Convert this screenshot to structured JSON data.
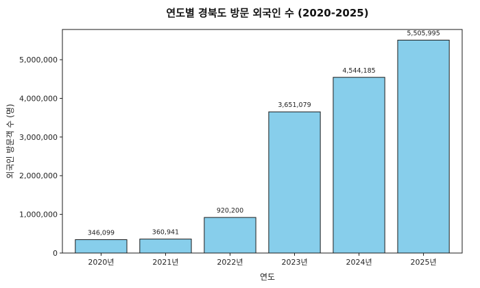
{
  "chart_data": {
    "type": "bar",
    "title": "연도별 경북도 방문 외국인 수 (2020-2025)",
    "xlabel": "연도",
    "ylabel": "외국인 방문객 수 (명)",
    "categories": [
      "2020년",
      "2021년",
      "2022년",
      "2023년",
      "2024년",
      "2025년"
    ],
    "values": [
      346099,
      360941,
      920200,
      3651079,
      4544185,
      5505995
    ],
    "value_labels": [
      "346,099",
      "360,941",
      "920,200",
      "3,651,079",
      "4,544,185",
      "5,505,995"
    ],
    "y_ticks": [
      0,
      1000000,
      2000000,
      3000000,
      4000000,
      5000000
    ],
    "y_tick_labels": [
      "0",
      "1,000,000",
      "2,000,000",
      "3,000,000",
      "4,000,000",
      "5,000,000"
    ],
    "ylim": [
      0,
      5781295
    ],
    "grid": false,
    "bar_color": "#87ceeb",
    "edge_color": "#1a1a1a"
  }
}
